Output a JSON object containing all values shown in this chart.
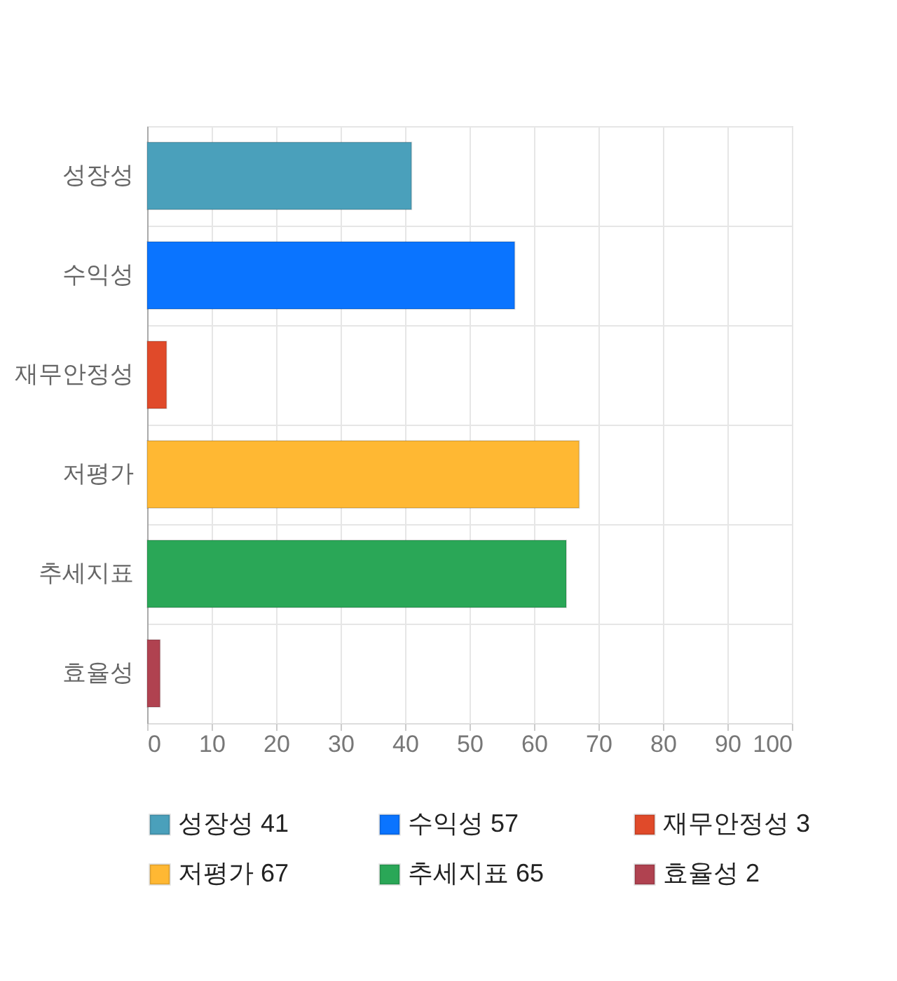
{
  "chart_data": {
    "type": "bar",
    "orientation": "horizontal",
    "categories": [
      "성장성",
      "수익성",
      "재무안정성",
      "저평가",
      "추세지표",
      "효율성"
    ],
    "series": [
      {
        "name": "성장성 41",
        "color": "#4aa0bb",
        "values": [
          41,
          null,
          null,
          null,
          null,
          null
        ]
      },
      {
        "name": "수익성 57",
        "color": "#0a74ff",
        "values": [
          null,
          57,
          null,
          null,
          null,
          null
        ]
      },
      {
        "name": "재무안정성 3",
        "color": "#e04a2a",
        "values": [
          null,
          null,
          3,
          null,
          null,
          null
        ]
      },
      {
        "name": "저평가 67",
        "color": "#ffb833",
        "values": [
          null,
          null,
          null,
          67,
          null,
          null
        ]
      },
      {
        "name": "추세지표 65",
        "color": "#2aa757",
        "values": [
          null,
          null,
          null,
          null,
          65,
          null
        ]
      },
      {
        "name": "효율성 2",
        "color": "#b04250",
        "values": [
          null,
          null,
          null,
          null,
          null,
          2
        ]
      }
    ],
    "xlim": [
      0,
      100
    ],
    "xticks": [
      0,
      10,
      20,
      30,
      40,
      50,
      60,
      70,
      80,
      90,
      100
    ],
    "grid": true,
    "legend": "bottom"
  }
}
